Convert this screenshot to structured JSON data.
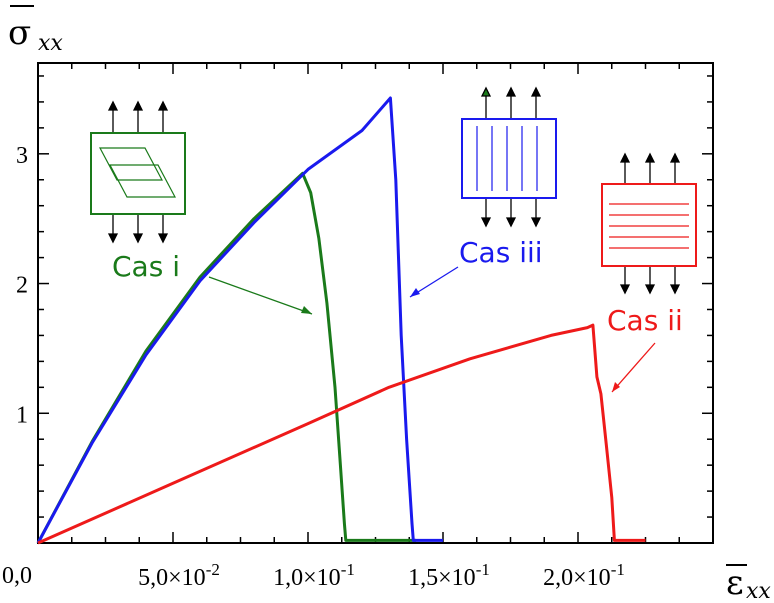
{
  "chart_data": {
    "type": "line",
    "title": "",
    "ylabel": {
      "main": "σ",
      "sub": "xx"
    },
    "xlabel": {
      "main": "ε",
      "sub": "xx"
    },
    "xlim": [
      0,
      0.25
    ],
    "ylim": [
      0,
      3.7
    ],
    "origin_label": "0,0",
    "x_ticks": [
      {
        "value": 0.05,
        "mantissa": "5,0×10",
        "exp": "-2"
      },
      {
        "value": 0.1,
        "mantissa": "1,0×10",
        "exp": "-1"
      },
      {
        "value": 0.15,
        "mantissa": "1,5×10",
        "exp": "-1"
      },
      {
        "value": 0.2,
        "mantissa": "2,0×10",
        "exp": "-1"
      }
    ],
    "y_ticks": [
      {
        "value": 1,
        "label": "1"
      },
      {
        "value": 2,
        "label": "2"
      },
      {
        "value": 3,
        "label": "3"
      }
    ],
    "grid": false,
    "series": [
      {
        "name": "Cas i",
        "color": "#1a7a1a",
        "points": [
          [
            0,
            0
          ],
          [
            0.02,
            0.78
          ],
          [
            0.04,
            1.48
          ],
          [
            0.06,
            2.05
          ],
          [
            0.08,
            2.5
          ],
          [
            0.098,
            2.85
          ],
          [
            0.101,
            2.7
          ],
          [
            0.104,
            2.35
          ],
          [
            0.107,
            1.85
          ],
          [
            0.11,
            1.2
          ],
          [
            0.112,
            0.6
          ],
          [
            0.1135,
            0.15
          ],
          [
            0.114,
            0.02
          ],
          [
            0.13,
            0.02
          ],
          [
            0.14,
            0.02
          ]
        ]
      },
      {
        "name": "Cas iii",
        "color": "#1a1aee",
        "points": [
          [
            0,
            0
          ],
          [
            0.02,
            0.77
          ],
          [
            0.04,
            1.45
          ],
          [
            0.06,
            2.02
          ],
          [
            0.08,
            2.47
          ],
          [
            0.1,
            2.88
          ],
          [
            0.12,
            3.18
          ],
          [
            0.1305,
            3.43
          ],
          [
            0.1325,
            2.8
          ],
          [
            0.1345,
            1.6
          ],
          [
            0.1365,
            0.8
          ],
          [
            0.1385,
            0.15
          ],
          [
            0.139,
            0.02
          ],
          [
            0.145,
            0.02
          ],
          [
            0.15,
            0.02
          ]
        ]
      },
      {
        "name": "Cas ii",
        "color": "#ee1a1a",
        "points": [
          [
            0,
            0
          ],
          [
            0.05,
            0.46
          ],
          [
            0.1,
            0.92
          ],
          [
            0.13,
            1.2
          ],
          [
            0.16,
            1.42
          ],
          [
            0.19,
            1.6
          ],
          [
            0.2035,
            1.66
          ],
          [
            0.2055,
            1.68
          ],
          [
            0.207,
            1.28
          ],
          [
            0.2085,
            1.15
          ],
          [
            0.2105,
            0.75
          ],
          [
            0.2125,
            0.35
          ],
          [
            0.2135,
            0.02
          ],
          [
            0.22,
            0.02
          ],
          [
            0.225,
            0.02
          ]
        ]
      }
    ],
    "annotations": [
      {
        "text": "Cas i",
        "color": "#1a7a1a",
        "points_to": [
          0.111,
          1.88
        ]
      },
      {
        "text": "Cas iii",
        "color": "#1a1aee",
        "points_to": [
          0.1352,
          2.03
        ]
      },
      {
        "text": "Cas ii",
        "color": "#ee1a1a",
        "points_to": [
          0.2066,
          1.26
        ]
      }
    ]
  }
}
